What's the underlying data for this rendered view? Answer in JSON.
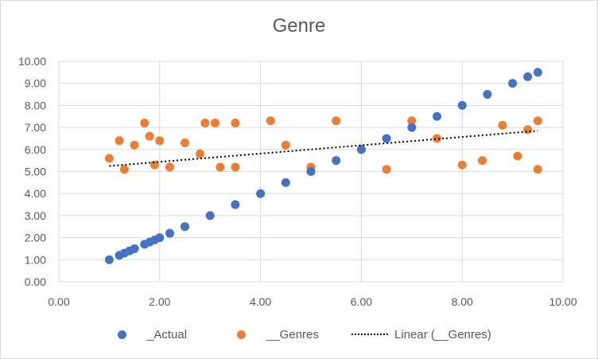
{
  "chart_data": {
    "type": "scatter",
    "title": "Genre",
    "xlabel": "",
    "ylabel": "",
    "xlim": [
      0,
      10
    ],
    "ylim": [
      0,
      10
    ],
    "x_ticks": [
      "0.00",
      "2.00",
      "4.00",
      "6.00",
      "8.00",
      "10.00"
    ],
    "y_ticks": [
      "0.00",
      "1.00",
      "2.00",
      "3.00",
      "4.00",
      "5.00",
      "6.00",
      "7.00",
      "8.00",
      "9.00",
      "10.00"
    ],
    "grid": true,
    "legend_position": "bottom",
    "colors": {
      "actual": "#4472c4",
      "genres": "#ed7d31",
      "trend": "#000000"
    },
    "series": [
      {
        "name": "_Actual",
        "type": "scatter",
        "x": [
          1.0,
          1.2,
          1.3,
          1.4,
          1.5,
          1.7,
          1.8,
          1.9,
          2.0,
          2.2,
          2.5,
          3.0,
          3.5,
          4.0,
          4.5,
          5.0,
          5.5,
          6.0,
          6.5,
          7.0,
          7.5,
          8.0,
          8.5,
          9.0,
          9.3,
          9.5
        ],
        "y": [
          1.0,
          1.2,
          1.3,
          1.4,
          1.5,
          1.7,
          1.8,
          1.9,
          2.0,
          2.2,
          2.5,
          3.0,
          3.5,
          4.0,
          4.5,
          5.0,
          5.5,
          6.0,
          6.5,
          7.0,
          7.5,
          8.0,
          8.5,
          9.0,
          9.3,
          9.5
        ]
      },
      {
        "name": "__Genres",
        "type": "scatter",
        "x": [
          1.0,
          1.2,
          1.3,
          1.5,
          1.7,
          1.8,
          1.9,
          2.0,
          2.2,
          2.5,
          2.8,
          2.9,
          3.1,
          3.2,
          3.5,
          3.5,
          4.2,
          4.5,
          5.0,
          5.5,
          6.0,
          6.5,
          7.0,
          7.5,
          8.0,
          8.4,
          8.8,
          9.1,
          9.3,
          9.5,
          9.5
        ],
        "y": [
          5.6,
          6.4,
          5.1,
          6.2,
          7.2,
          6.6,
          5.3,
          6.4,
          5.2,
          6.3,
          5.8,
          7.2,
          7.2,
          5.2,
          5.2,
          7.2,
          7.3,
          6.2,
          5.2,
          7.3,
          6.0,
          5.1,
          7.3,
          6.5,
          5.3,
          5.5,
          7.1,
          5.7,
          6.9,
          7.3,
          5.1
        ]
      },
      {
        "name": "Linear (__Genres)",
        "type": "trendline",
        "x": [
          1.0,
          9.5
        ],
        "y": [
          5.25,
          6.85
        ]
      }
    ]
  },
  "legend": {
    "actual": "_Actual",
    "genres": "__Genres",
    "trend": "Linear (__Genres)"
  }
}
